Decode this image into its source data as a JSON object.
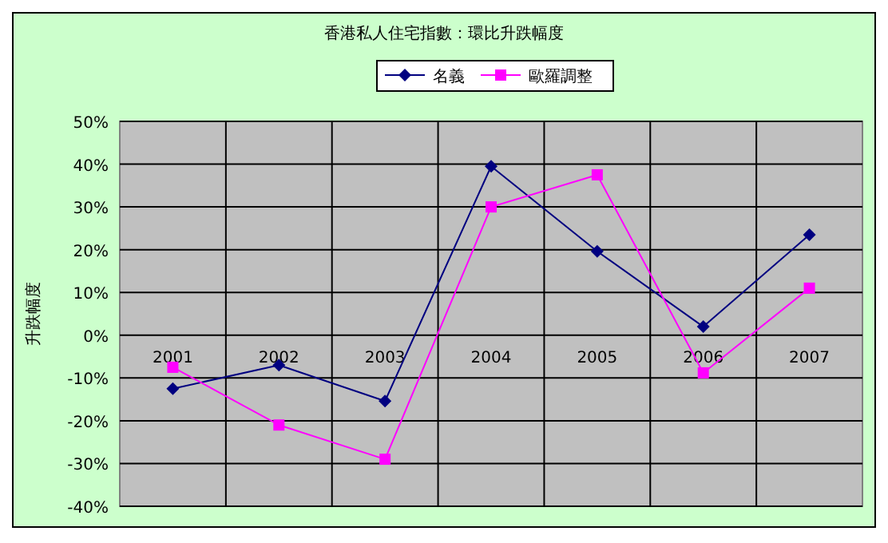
{
  "chart_data": {
    "type": "line",
    "title": "香港私人住宅指數：環比升跌幅度",
    "ylabel": "升跌幅度",
    "categories": [
      "2001",
      "2002",
      "2003",
      "2004",
      "2005",
      "2006",
      "2007"
    ],
    "series": [
      {
        "name": "名義",
        "color": "#000080",
        "marker": "diamond",
        "values": [
          -12.5,
          -7,
          -15.4,
          39.5,
          19.6,
          2,
          23.5
        ]
      },
      {
        "name": "歐羅調整",
        "color": "#ff00ff",
        "marker": "square",
        "values": [
          -7.5,
          -21,
          -29,
          30,
          37.5,
          -8.8,
          11
        ]
      }
    ],
    "ylim": [
      -40,
      50
    ],
    "yticks": [
      {
        "value": -40,
        "label": "-40%"
      },
      {
        "value": -30,
        "label": "-30%"
      },
      {
        "value": -20,
        "label": "-20%"
      },
      {
        "value": -10,
        "label": "-10%"
      },
      {
        "value": 0,
        "label": "0%"
      },
      {
        "value": 10,
        "label": "10%"
      },
      {
        "value": 20,
        "label": "20%"
      },
      {
        "value": 30,
        "label": "30%"
      },
      {
        "value": 40,
        "label": "40%"
      },
      {
        "value": 50,
        "label": "50%"
      }
    ],
    "grid": true,
    "legend": "top"
  }
}
